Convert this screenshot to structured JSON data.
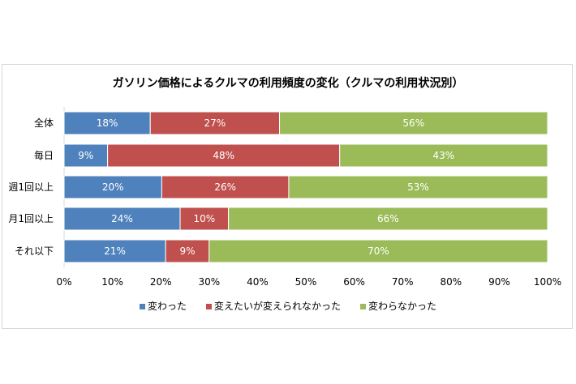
{
  "chart_data": {
    "type": "bar",
    "orientation": "horizontal",
    "stacked": "percent",
    "title": "ガソリン価格によるクルマの利用頻度の変化（クルマの利用状況別）",
    "categories": [
      "全体",
      "毎日",
      "週1回以上",
      "月1回以上",
      "それ以下"
    ],
    "series": [
      {
        "name": "変わった",
        "color": "#4f81bd",
        "values": [
          18,
          9,
          20,
          24,
          21
        ]
      },
      {
        "name": "変えたいが変えられなかった",
        "color": "#c0504d",
        "values": [
          27,
          48,
          26,
          10,
          9
        ]
      },
      {
        "name": "変わらなかった",
        "color": "#9bbb59",
        "values": [
          56,
          43,
          53,
          66,
          70
        ]
      }
    ],
    "xlim": [
      0,
      100
    ],
    "xticks": [
      "0%",
      "10%",
      "20%",
      "30%",
      "40%",
      "50%",
      "60%",
      "70%",
      "80%",
      "90%",
      "100%"
    ],
    "grid": false,
    "legend": "bottom"
  }
}
